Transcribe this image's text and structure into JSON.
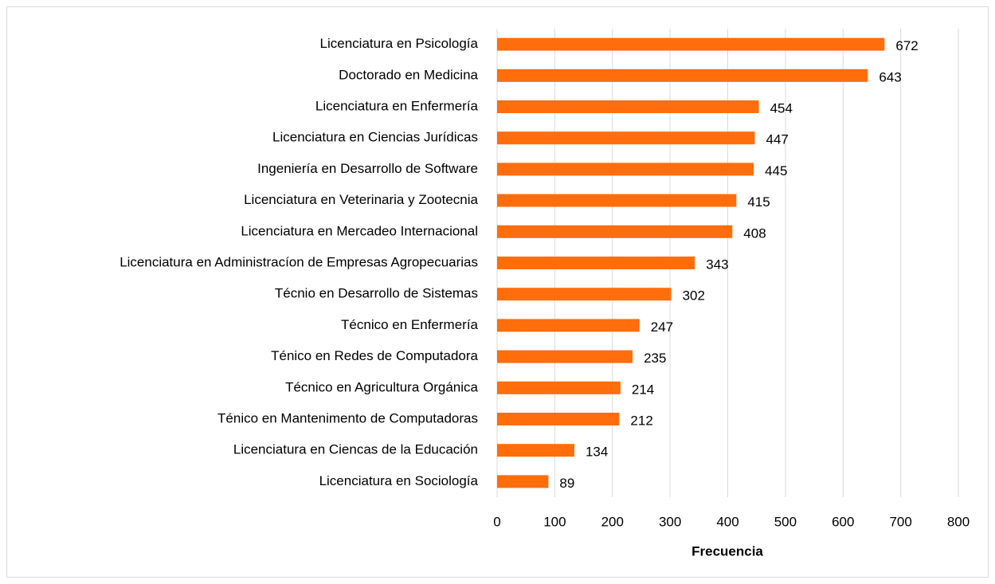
{
  "chart_data": {
    "type": "barh",
    "categories": [
      "Licenciatura en Psicología",
      "Doctorado en Medicina",
      "Licenciatura en Enfermería",
      "Licenciatura en Ciencias Jurídicas",
      "Ingeniería en Desarrollo de Software",
      "Licenciatura en Veterinaria y Zootecnia",
      "Licenciatura en Mercadeo Internacional",
      "Licenciatura en Administracíon de Empresas Agropecuarias",
      "Técnio en Desarrollo de Sistemas",
      "Técnico en Enfermería",
      "Ténico en Redes de Computadora",
      "Técnico en Agricultura Orgánica",
      "Ténico en Mantenimento de Computadoras",
      "Licenciatura en Ciencas de la Educación",
      "Licenciatura en Sociología"
    ],
    "values": [
      672,
      643,
      454,
      447,
      445,
      415,
      408,
      343,
      302,
      247,
      235,
      214,
      212,
      134,
      89
    ],
    "color": "#ff6d0d",
    "xlabel": "Frecuencia",
    "xlim": [
      0,
      800
    ],
    "xticks": [
      0,
      100,
      200,
      300,
      400,
      500,
      600,
      700,
      800
    ],
    "grid": true
  }
}
